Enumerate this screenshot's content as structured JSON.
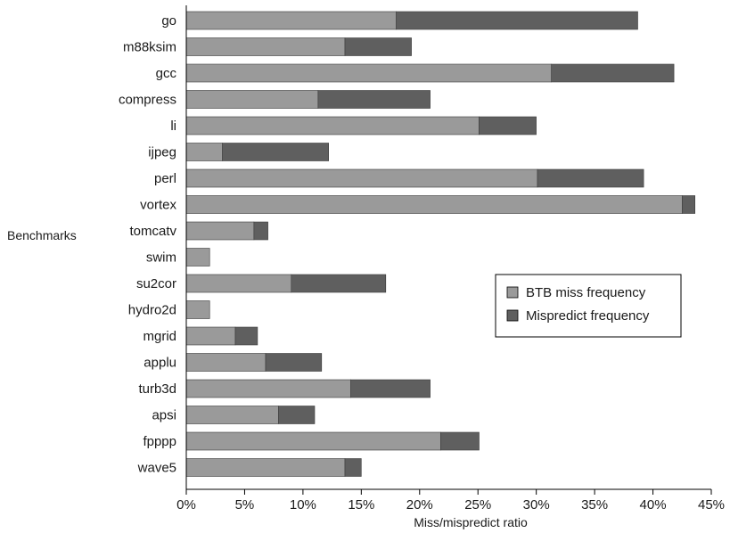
{
  "colors": {
    "btb_fill": "#9a9a9a",
    "mispredict_fill": "#5f5f5f",
    "axis": "#000000",
    "text": "#1a1a1a"
  },
  "chart_data": {
    "type": "bar",
    "orientation": "horizontal",
    "stacked": true,
    "title": "",
    "xlabel": "Miss/mispredict ratio",
    "ylabel": "Benchmarks",
    "xlim": [
      0,
      45
    ],
    "x_ticks": [
      "0%",
      "5%",
      "10%",
      "15%",
      "20%",
      "25%",
      "30%",
      "35%",
      "40%",
      "45%"
    ],
    "grid": false,
    "legend_position": "right-middle",
    "categories": [
      "go",
      "m88ksim",
      "gcc",
      "compress",
      "li",
      "ijpeg",
      "perl",
      "vortex",
      "tomcatv",
      "swim",
      "su2cor",
      "hydro2d",
      "mgrid",
      "applu",
      "turb3d",
      "apsi",
      "fpppp",
      "wave5"
    ],
    "series": [
      {
        "name": "BTB miss frequency",
        "values": [
          18.0,
          13.6,
          31.3,
          11.3,
          25.1,
          3.1,
          30.1,
          42.5,
          5.8,
          2.0,
          9.0,
          2.0,
          4.2,
          6.8,
          14.1,
          7.9,
          21.8,
          13.6
        ]
      },
      {
        "name": "Mispredict frequency",
        "values": [
          20.7,
          5.7,
          10.5,
          9.6,
          4.9,
          9.1,
          9.1,
          1.1,
          1.2,
          0.0,
          8.1,
          0.0,
          1.9,
          4.8,
          6.8,
          3.1,
          3.3,
          1.4
        ]
      }
    ]
  }
}
